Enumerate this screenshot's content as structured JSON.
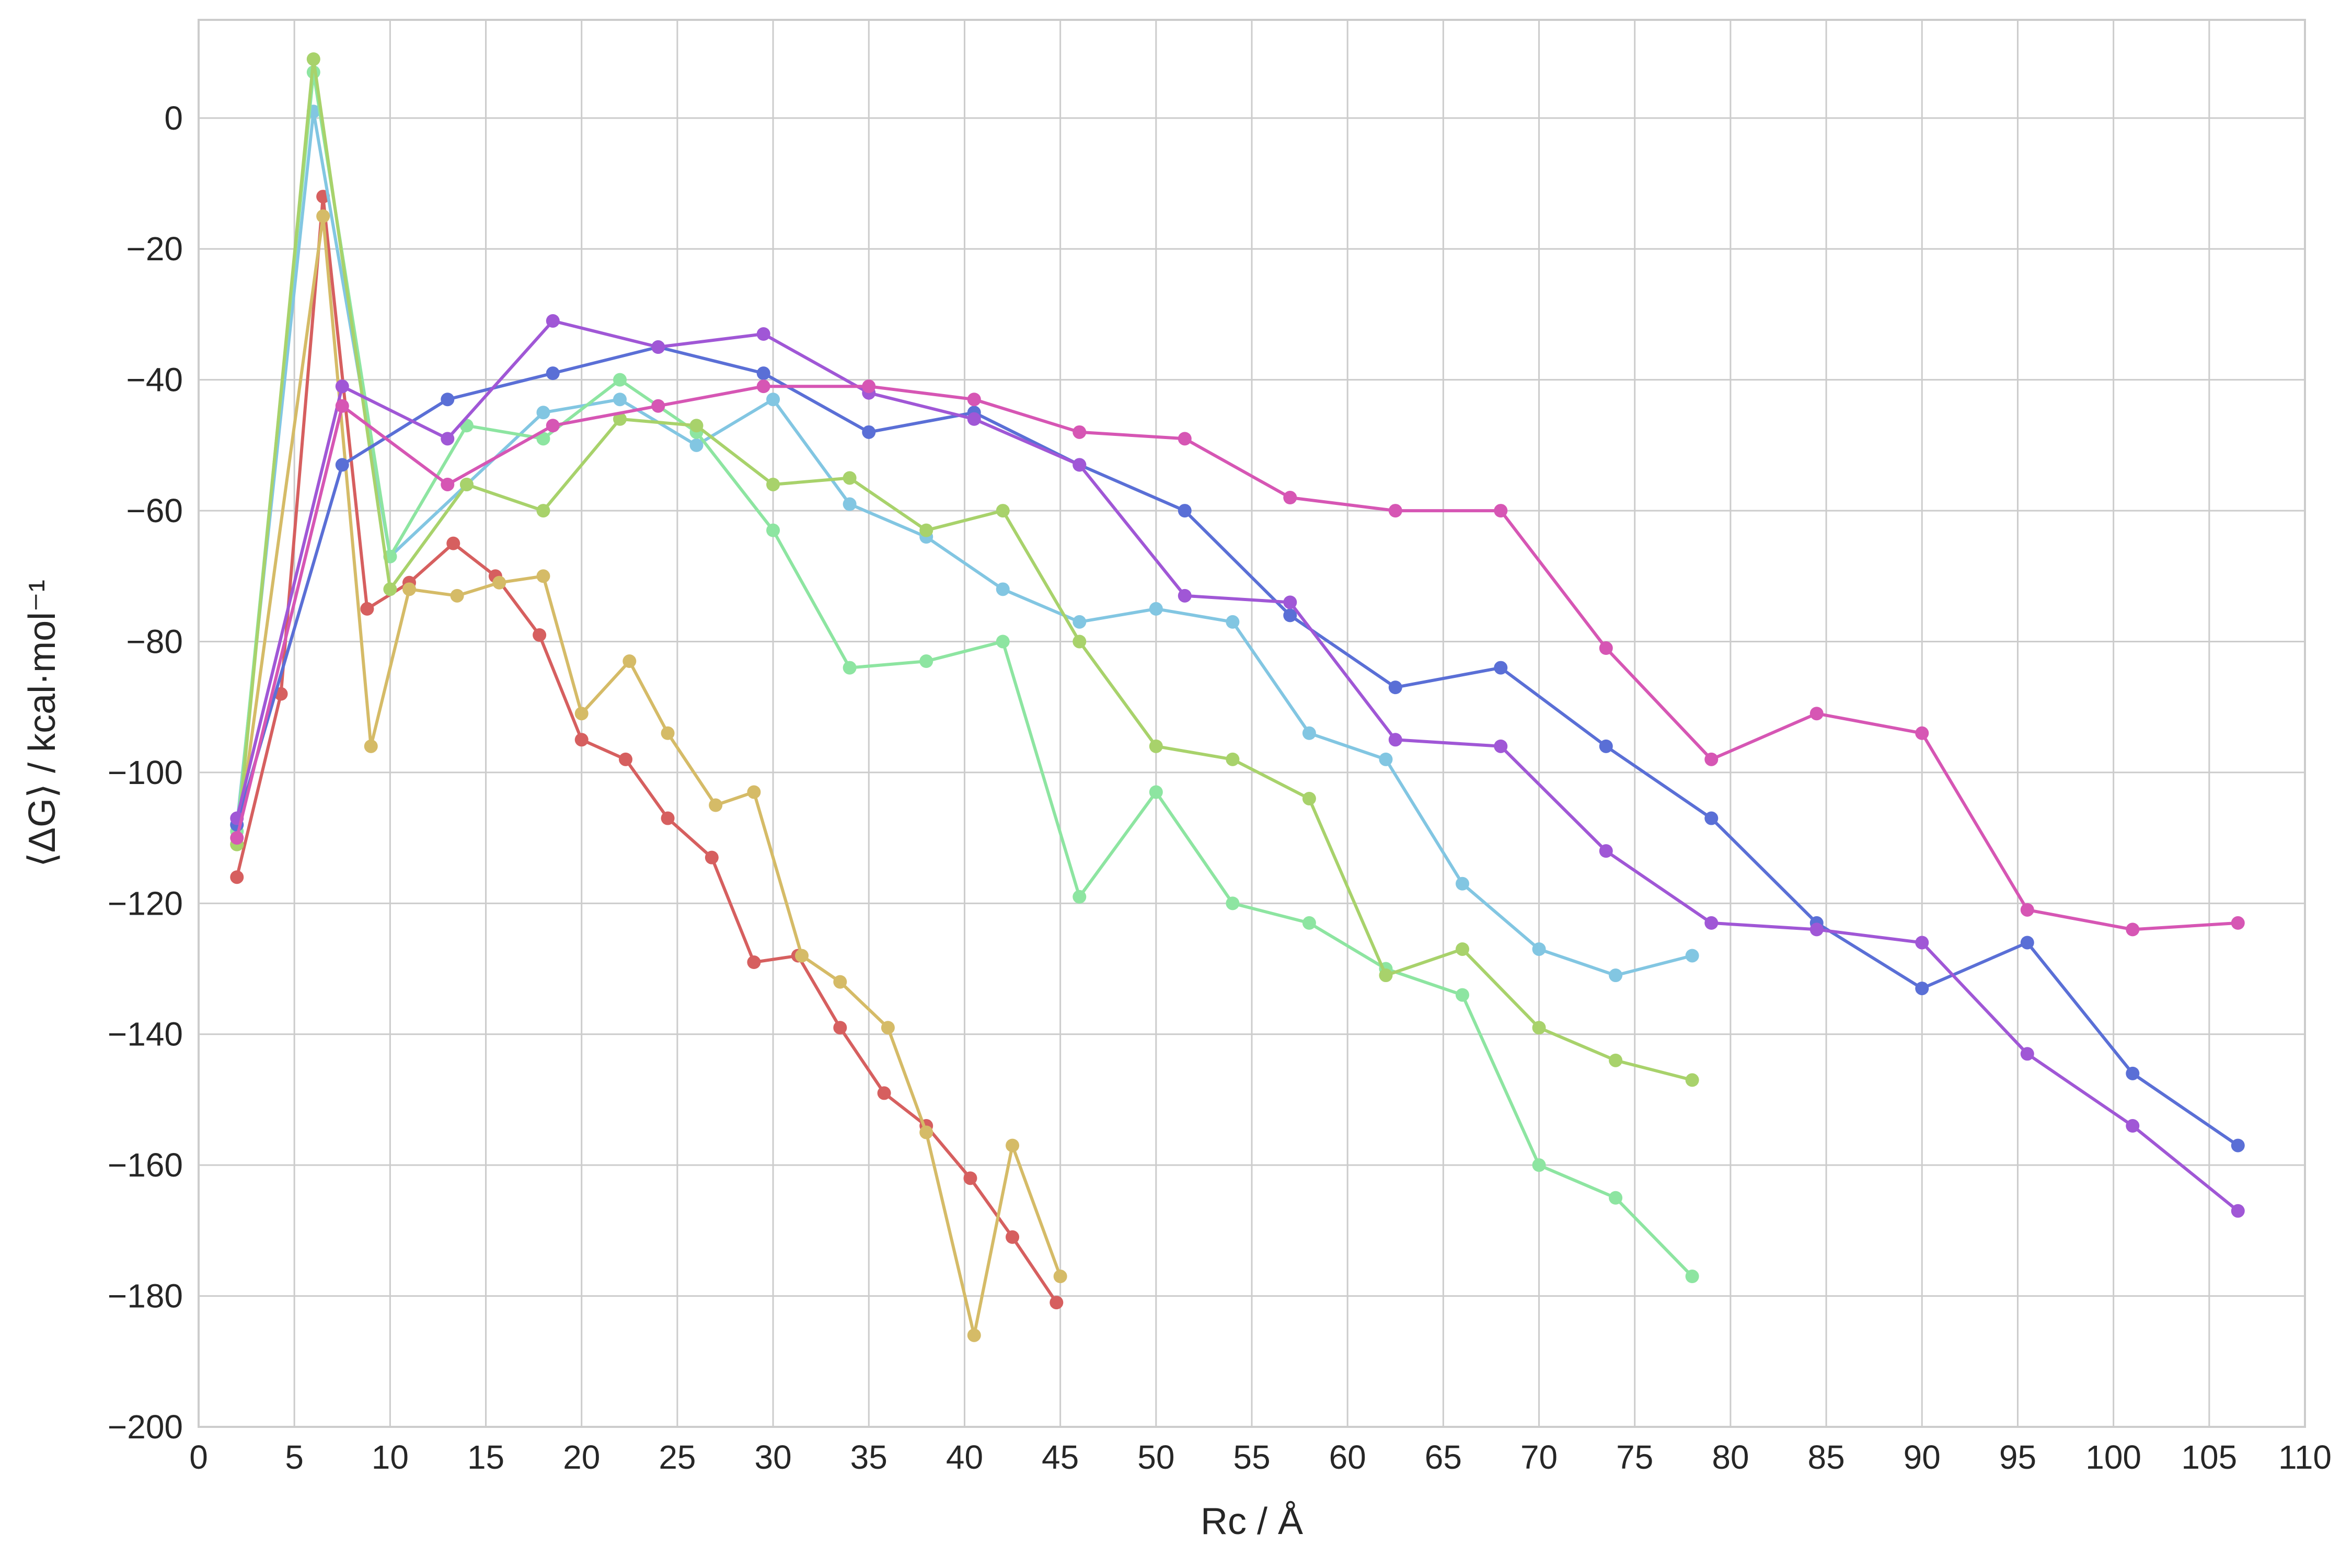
{
  "chart_data": {
    "type": "line",
    "title": "",
    "xlabel": "Rc / Å",
    "ylabel": "⟨ΔG⟩ / kcal·mol⁻¹",
    "xlim": [
      0,
      110
    ],
    "ylim": [
      -200,
      15
    ],
    "xticks": [
      0,
      5,
      10,
      15,
      20,
      25,
      30,
      35,
      40,
      45,
      50,
      55,
      60,
      65,
      70,
      75,
      80,
      85,
      90,
      95,
      100,
      105,
      110
    ],
    "yticks": [
      0,
      -20,
      -40,
      -60,
      -80,
      -100,
      -120,
      -140,
      -160,
      -180,
      -200
    ],
    "xtick_labels": [
      "0",
      "5",
      "10",
      "15",
      "20",
      "25",
      "30",
      "35",
      "40",
      "45",
      "50",
      "55",
      "60",
      "65",
      "70",
      "75",
      "80",
      "85",
      "90",
      "95",
      "100",
      "105",
      "110"
    ],
    "ytick_labels": [
      "0",
      "−20",
      "−40",
      "−60",
      "−80",
      "−100",
      "−120",
      "−140",
      "−160",
      "−180",
      "−200"
    ],
    "grid": true,
    "series": [
      {
        "color": "#d65f5f",
        "x": [
          2.0,
          4.3,
          6.5,
          8.8,
          11.0,
          13.3,
          15.5,
          17.8,
          20.0,
          22.3,
          24.5,
          26.8,
          29.0,
          31.3,
          33.5,
          35.8,
          38.0,
          40.3,
          42.5,
          44.8
        ],
        "y": [
          -116,
          -88,
          -12,
          -75,
          -71,
          -65,
          -70,
          -79,
          -95,
          -98,
          -107,
          -113,
          -129,
          -128,
          -139,
          -149,
          -154,
          -162,
          -171,
          -181
        ]
      },
      {
        "color": "#d5bb67",
        "x": [
          2.0,
          6.5,
          9.0,
          11.0,
          13.5,
          15.7,
          18.0,
          20.0,
          22.5,
          24.5,
          27.0,
          29.0,
          31.5,
          33.5,
          36.0,
          38.0,
          40.5,
          42.5,
          45.0
        ],
        "y": [
          -111,
          -15,
          -96,
          -72,
          -73,
          -71,
          -70,
          -91,
          -83,
          -94,
          -105,
          -103,
          -128,
          -132,
          -139,
          -155,
          -186,
          -157,
          -177
        ]
      },
      {
        "color": "#82c6e2",
        "x": [
          2.0,
          6.0,
          10.0,
          14.0,
          18.0,
          22.0,
          26.0,
          30.0,
          34.0,
          38.0,
          42.0,
          46.0,
          50.0,
          54.0,
          58.0,
          62.0,
          66.0,
          70.0,
          74.0,
          78.0
        ],
        "y": [
          -108,
          1,
          -67,
          -56,
          -45,
          -43,
          -50,
          -43,
          -59,
          -64,
          -72,
          -77,
          -75,
          -77,
          -94,
          -98,
          -117,
          -127,
          -131,
          -128
        ]
      },
      {
        "color": "#8de5a1",
        "x": [
          2.0,
          6.0,
          10.0,
          14.0,
          18.0,
          22.0,
          26.0,
          30.0,
          34.0,
          38.0,
          42.0,
          46.0,
          50.0,
          54.0,
          58.0,
          62.0,
          66.0,
          70.0,
          74.0,
          78.0
        ],
        "y": [
          -109,
          7,
          -67,
          -47,
          -49,
          -40,
          -48,
          -63,
          -84,
          -83,
          -80,
          -119,
          -103,
          -120,
          -123,
          -130,
          -134,
          -160,
          -165,
          -177
        ]
      },
      {
        "color": "#a8d26b",
        "x": [
          2.0,
          6.0,
          10.0,
          14.0,
          18.0,
          22.0,
          26.0,
          30.0,
          34.0,
          38.0,
          42.0,
          46.0,
          50.0,
          54.0,
          58.0,
          62.0,
          66.0,
          70.0,
          74.0,
          78.0
        ],
        "y": [
          -111,
          9,
          -72,
          -56,
          -60,
          -46,
          -47,
          -56,
          -55,
          -63,
          -60,
          -80,
          -96,
          -98,
          -104,
          -131,
          -127,
          -139,
          -144,
          -147
        ]
      },
      {
        "color": "#5a6fd6",
        "x": [
          2.0,
          7.5,
          13.0,
          18.5,
          24.0,
          29.5,
          35.0,
          40.5,
          46.0,
          51.5,
          57.0,
          62.5,
          68.0,
          73.5,
          79.0,
          84.5,
          90.0,
          95.5,
          101.0,
          106.5
        ],
        "y": [
          -108,
          -53,
          -43,
          -39,
          -35,
          -39,
          -48,
          -45,
          -53,
          -60,
          -76,
          -87,
          -84,
          -96,
          -107,
          -123,
          -133,
          -126,
          -146,
          -157
        ]
      },
      {
        "color": "#a057d6",
        "x": [
          2.0,
          7.5,
          13.0,
          18.5,
          24.0,
          29.5,
          35.0,
          40.5,
          46.0,
          51.5,
          57.0,
          62.5,
          68.0,
          73.5,
          79.0,
          84.5,
          90.0,
          95.5,
          101.0,
          106.5
        ],
        "y": [
          -107,
          -41,
          -49,
          -31,
          -35,
          -33,
          -42,
          -46,
          -53,
          -73,
          -74,
          -95,
          -96,
          -112,
          -123,
          -124,
          -126,
          -143,
          -154,
          -167
        ]
      },
      {
        "color": "#d656b4",
        "x": [
          2.0,
          7.5,
          13.0,
          18.5,
          24.0,
          29.5,
          35.0,
          40.5,
          46.0,
          51.5,
          57.0,
          62.5,
          68.0,
          73.5,
          79.0,
          84.5,
          90.0,
          95.5,
          101.0,
          106.5
        ],
        "y": [
          -110,
          -44,
          -56,
          -47,
          -44,
          -41,
          -41,
          -43,
          -48,
          -49,
          -58,
          -60,
          -60,
          -81,
          -98,
          -91,
          -94,
          -121,
          -124,
          -123
        ]
      }
    ]
  }
}
